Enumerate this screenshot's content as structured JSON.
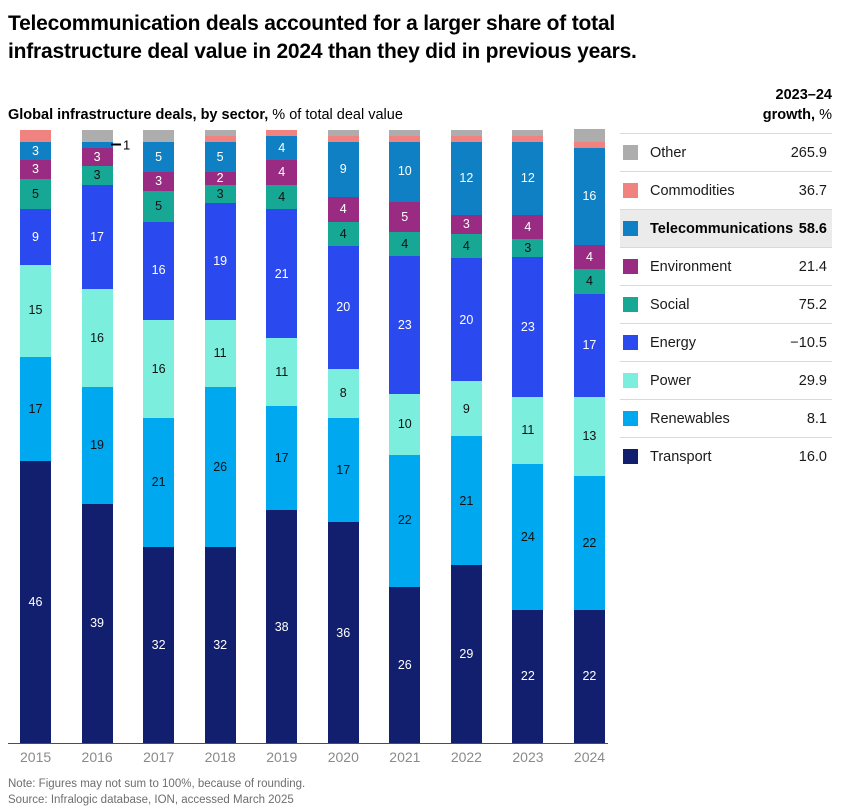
{
  "title": {
    "line1": "Telecommunication deals accounted for a larger share of total",
    "line2": "infrastructure deal value in 2024 than they did in previous years."
  },
  "subtitle": {
    "bold": "Global infrastructure deals, by sector,",
    "regular": " % of total deal value"
  },
  "growth_header": {
    "line1": "2023–24",
    "line2_bold": "growth,",
    "line2_regular": " %"
  },
  "note": "Note: Figures may not sum to 100%, because of rounding.",
  "source": "Source: Infralogic database, ION, accessed March 2025",
  "chart_data": {
    "type": "bar",
    "stacked": true,
    "title": "Global infrastructure deals, by sector, % of total deal value",
    "xlabel": "",
    "ylabel": "% of total deal value",
    "ylim": [
      0,
      100
    ],
    "grid": false,
    "legend_position": "right",
    "categories": [
      "2015",
      "2016",
      "2017",
      "2018",
      "2019",
      "2020",
      "2021",
      "2022",
      "2023",
      "2024"
    ],
    "series": [
      {
        "name": "Transport",
        "color": "#121F6E",
        "label_color": "#ffffff",
        "growth": 16.0,
        "growth_display": "16.0",
        "values": [
          46,
          39,
          32,
          32,
          38,
          36,
          26,
          29,
          22,
          22
        ]
      },
      {
        "name": "Renewables",
        "color": "#00A8EF",
        "label_color": "#111111",
        "growth": 8.1,
        "growth_display": "8.1",
        "values": [
          17,
          19,
          21,
          26,
          17,
          17,
          22,
          21,
          24,
          22
        ]
      },
      {
        "name": "Power",
        "color": "#7CEEDD",
        "label_color": "#111111",
        "growth": 29.9,
        "growth_display": "29.9",
        "values": [
          15,
          16,
          16,
          11,
          11,
          8,
          10,
          9,
          11,
          13
        ]
      },
      {
        "name": "Energy",
        "color": "#2A4AF0",
        "label_color": "#ffffff",
        "growth": -10.5,
        "growth_display": "−10.5",
        "values": [
          9,
          17,
          16,
          19,
          21,
          20,
          23,
          20,
          23,
          17
        ]
      },
      {
        "name": "Social",
        "color": "#16A795",
        "label_color": "#111111",
        "growth": 75.2,
        "growth_display": "75.2",
        "values": [
          5,
          3,
          5,
          3,
          4,
          4,
          4,
          4,
          3,
          4
        ]
      },
      {
        "name": "Environment",
        "color": "#992C82",
        "label_color": "#ffffff",
        "growth": 21.4,
        "growth_display": "21.4",
        "values": [
          3,
          3,
          3,
          2,
          4,
          4,
          5,
          3,
          4,
          4
        ]
      },
      {
        "name": "Telecommunications",
        "color": "#0F80C3",
        "label_color": "#ffffff",
        "growth": 58.6,
        "growth_display": "58.6",
        "highlight": true,
        "values": [
          3,
          1,
          5,
          5,
          4,
          9,
          10,
          12,
          12,
          16
        ]
      },
      {
        "name": "Commodities",
        "color": "#F0827F",
        "label_color": "#111111",
        "growth": 36.7,
        "growth_display": "36.7",
        "show_labels": false,
        "values": [
          2,
          0,
          0,
          1,
          1,
          1,
          1,
          1,
          1,
          1
        ]
      },
      {
        "name": "Other",
        "color": "#ADADAD",
        "label_color": "#111111",
        "growth": 265.9,
        "growth_display": "265.9",
        "show_labels": false,
        "values": [
          0,
          2,
          2,
          1,
          0,
          1,
          1,
          1,
          1,
          2
        ]
      }
    ],
    "annotation": {
      "category": "2016",
      "series": "Telecommunications",
      "label": "1"
    }
  }
}
